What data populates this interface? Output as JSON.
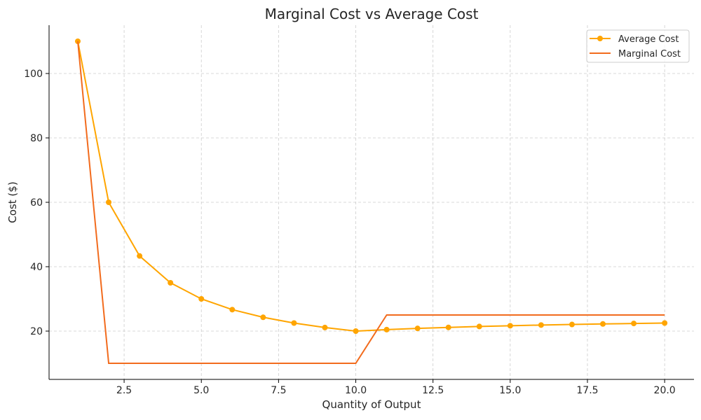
{
  "chart_data": {
    "type": "line",
    "title": "Marginal Cost vs Average Cost",
    "xlabel": "Quantity of Output",
    "ylabel": "Cost ($)",
    "xlim": [
      0.07,
      20.95
    ],
    "ylim": [
      5,
      115
    ],
    "xticks": [
      2.5,
      5.0,
      7.5,
      10.0,
      12.5,
      15.0,
      17.5,
      20.0
    ],
    "xtick_labels": [
      "2.5",
      "5.0",
      "7.5",
      "10.0",
      "12.5",
      "15.0",
      "17.5",
      "20.0"
    ],
    "yticks": [
      20,
      40,
      60,
      80,
      100
    ],
    "ytick_labels": [
      "20",
      "40",
      "60",
      "80",
      "100"
    ],
    "grid": true,
    "legend_position": "top-right",
    "x": [
      1,
      2,
      3,
      4,
      5,
      6,
      7,
      8,
      9,
      10,
      11,
      12,
      13,
      14,
      15,
      16,
      17,
      18,
      19,
      20
    ],
    "series": [
      {
        "name": "Average Cost",
        "color": "#FFA500",
        "marker": "circle",
        "values": [
          110,
          60,
          43.33,
          35,
          30,
          26.67,
          24.29,
          22.5,
          21.11,
          20,
          20.45,
          20.83,
          21.15,
          21.43,
          21.67,
          21.88,
          22.06,
          22.22,
          22.37,
          22.5
        ]
      },
      {
        "name": "Marginal Cost",
        "color": "#F26B1D",
        "marker": "none",
        "values": [
          110,
          10,
          10,
          10,
          10,
          10,
          10,
          10,
          10,
          10,
          25,
          25,
          25,
          25,
          25,
          25,
          25,
          25,
          25,
          25
        ]
      }
    ]
  }
}
